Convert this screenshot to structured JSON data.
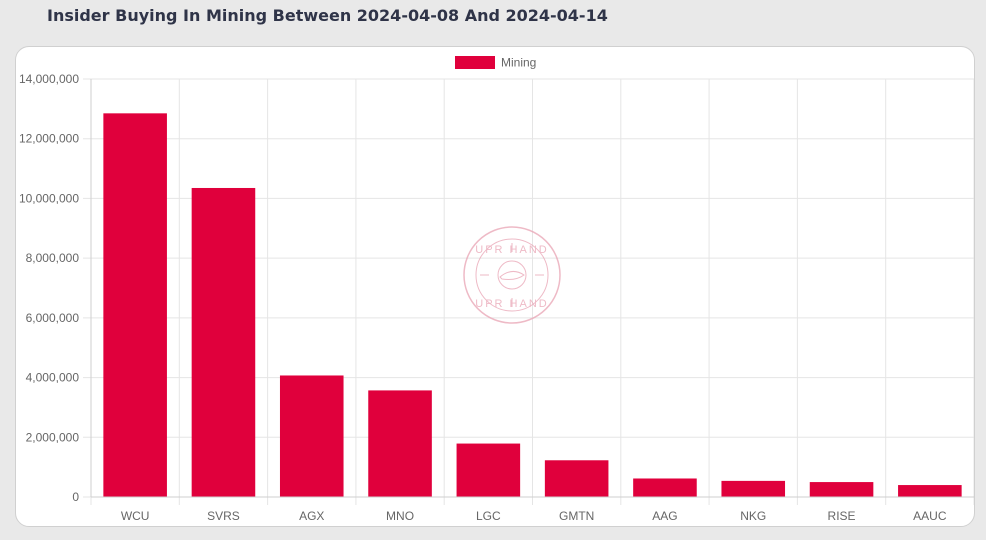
{
  "page": {
    "title": "Insider Buying In Mining Between 2024-04-08 And 2024-04-14"
  },
  "watermark": {
    "text_top": "UPR HAND",
    "text_bottom": "UPR HAND"
  },
  "colors": {
    "bar": "#e0003c",
    "grid": "#e5e5e5",
    "axis_text": "#666666",
    "watermark": "#e9a3b4"
  },
  "chart_data": {
    "type": "bar",
    "categories": [
      "WCU",
      "SVRS",
      "AGX",
      "MNO",
      "LGC",
      "GMTN",
      "AAG",
      "NKG",
      "RISE",
      "AAUC"
    ],
    "series": [
      {
        "name": "Mining",
        "values": [
          12850000,
          10350000,
          4070000,
          3570000,
          1790000,
          1230000,
          620000,
          540000,
          500000,
          400000
        ]
      }
    ],
    "yticks": [
      "0",
      "2,000,000",
      "4,000,000",
      "6,000,000",
      "8,000,000",
      "10,000,000",
      "12,000,000",
      "14,000,000"
    ],
    "ylim": [
      0,
      14000000
    ],
    "grid": true,
    "legend_position": "top-center"
  }
}
